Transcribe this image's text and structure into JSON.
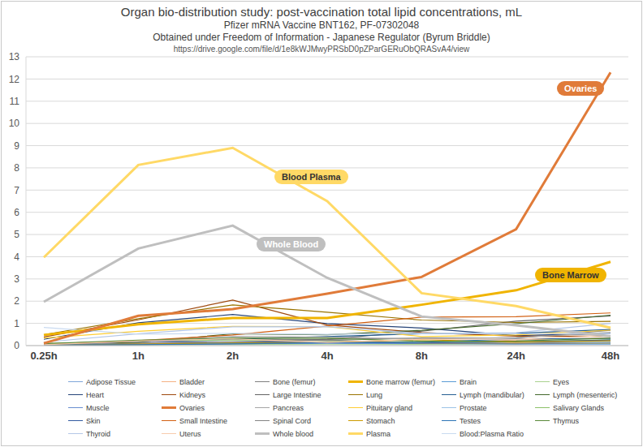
{
  "chart_data": {
    "type": "line",
    "title": "Organ bio-distribution study: post-vaccination total lipid concentrations, mL",
    "subtitle": [
      "Pfizer mRNA Vaccine BNT162, PF-07302048",
      "Obtained under Freedom of Information - Japanese Regulator (Byrum Briddle)",
      "https://drive.google.com/file/d/1e8kWJMwyPRSbD0pZParGERuObQRASvA4/view"
    ],
    "categories": [
      "0.25h",
      "1h",
      "2h",
      "4h",
      "8h",
      "24h",
      "48h"
    ],
    "ylim": [
      0,
      13
    ],
    "yticks": [
      0,
      1,
      2,
      3,
      4,
      5,
      6,
      7,
      8,
      9,
      10,
      11,
      12,
      13
    ],
    "grid": true,
    "series": [
      {
        "name": "Adipose Tissue",
        "color": "#7fa7d9",
        "values": [
          0.057,
          0.1,
          0.126,
          0.128,
          0.093,
          0.084,
          0.181
        ]
      },
      {
        "name": "Bladder",
        "color": "#f4b183",
        "values": [
          0.041,
          0.13,
          0.146,
          0.167,
          0.148,
          0.247,
          0.365
        ]
      },
      {
        "name": "Bone (femur)",
        "color": "#7f7f7f",
        "values": [
          0.091,
          0.195,
          0.266,
          0.276,
          0.34,
          0.342,
          0.687
        ]
      },
      {
        "name": "Bone marrow (femur)",
        "color": "#f0b400",
        "values": [
          0.479,
          0.96,
          1.24,
          1.24,
          1.84,
          2.49,
          3.77
        ]
      },
      {
        "name": "Brain",
        "color": "#5b9bd5",
        "values": [
          0.045,
          0.1,
          0.138,
          0.115,
          0.073,
          0.069,
          0.068
        ]
      },
      {
        "name": "Eyes",
        "color": "#a9d18e",
        "values": [
          0.01,
          0.035,
          0.052,
          0.067,
          0.059,
          0.091,
          0.112
        ]
      },
      {
        "name": "Heart",
        "color": "#264478",
        "values": [
          0.282,
          1.03,
          1.4,
          0.987,
          0.79,
          0.451,
          0.546
        ]
      },
      {
        "name": "Kidneys",
        "color": "#9e480e",
        "values": [
          0.391,
          1.16,
          2.05,
          0.924,
          0.59,
          0.426,
          0.425
        ]
      },
      {
        "name": "Large Intestine",
        "color": "#636363",
        "values": [
          0.013,
          0.048,
          0.093,
          0.287,
          0.649,
          1.1,
          1.34
        ]
      },
      {
        "name": "Lung",
        "color": "#997300",
        "values": [
          0.492,
          1.21,
          1.83,
          1.5,
          1.15,
          1.04,
          1.09
        ]
      },
      {
        "name": "Lymph (mandibular)",
        "color": "#255e91",
        "values": [
          0.064,
          0.189,
          0.29,
          0.408,
          0.534,
          0.554,
          0.727
        ]
      },
      {
        "name": "Lymph (mesenteric)",
        "color": "#43682b",
        "values": [
          0.05,
          0.146,
          0.53,
          0.489,
          0.689,
          0.985,
          1.37
        ]
      },
      {
        "name": "Muscle",
        "color": "#698ed0",
        "values": [
          0.021,
          0.061,
          0.084,
          0.103,
          0.096,
          0.095,
          0.192
        ]
      },
      {
        "name": "Ovaries",
        "color": "#e07b39",
        "values": [
          0.104,
          1.34,
          1.64,
          2.34,
          3.09,
          5.24,
          12.3
        ]
      },
      {
        "name": "Pancreas",
        "color": "#a5a5a5",
        "values": [
          0.081,
          0.207,
          0.414,
          0.38,
          0.294,
          0.358,
          0.599
        ]
      },
      {
        "name": "Pituitary gland",
        "color": "#ffcd33",
        "values": [
          0.339,
          0.645,
          0.868,
          0.854,
          0.405,
          0.478,
          0.694
        ]
      },
      {
        "name": "Prostate",
        "color": "#9dc3e6",
        "values": [
          0.061,
          0.091,
          0.128,
          0.157,
          0.15,
          0.183,
          0.17
        ]
      },
      {
        "name": "Salivary Glands",
        "color": "#8cc168",
        "values": [
          0.084,
          0.193,
          0.255,
          0.22,
          0.135,
          0.17,
          0.264
        ]
      },
      {
        "name": "Skin",
        "color": "#335aa1",
        "values": [
          0.013,
          0.208,
          0.159,
          0.145,
          0.119,
          0.157,
          0.253
        ]
      },
      {
        "name": "Small Intestine",
        "color": "#d26012",
        "values": [
          0.03,
          0.221,
          0.476,
          0.879,
          1.28,
          1.3,
          1.47
        ]
      },
      {
        "name": "Spinal Cord",
        "color": "#848484",
        "values": [
          0.043,
          0.097,
          0.169,
          0.25,
          0.106,
          0.085,
          0.112
        ]
      },
      {
        "name": "Stomach",
        "color": "#cc9a00",
        "values": [
          0.017,
          0.065,
          0.115,
          0.144,
          0.268,
          0.152,
          0.215
        ]
      },
      {
        "name": "Testes",
        "color": "#2e75b6",
        "values": [
          0.031,
          0.042,
          0.079,
          0.129,
          0.146,
          0.304,
          0.32
        ]
      },
      {
        "name": "Thymus",
        "color": "#5a8a3a",
        "values": [
          0.088,
          0.243,
          0.34,
          0.335,
          0.196,
          0.207,
          0.331
        ]
      },
      {
        "name": "Thyroid",
        "color": "#b4c7e7",
        "values": [
          0.155,
          0.536,
          0.842,
          0.851,
          0.544,
          0.578,
          1.0
        ]
      },
      {
        "name": "Uterus",
        "color": "#f8cbad",
        "values": [
          0.043,
          0.203,
          0.305,
          0.14,
          0.287,
          0.289,
          0.456
        ]
      },
      {
        "name": "Whole blood",
        "color": "#bfbfbf",
        "values": [
          1.97,
          4.37,
          5.4,
          3.05,
          1.31,
          0.909,
          0.42
        ]
      },
      {
        "name": "Plasma",
        "color": "#ffd966",
        "values": [
          3.97,
          8.13,
          8.9,
          6.5,
          2.36,
          1.78,
          0.805
        ]
      },
      {
        "name": "Blood:Plasma Ratio",
        "color": "#c9daf0",
        "values": [
          0.815,
          0.515,
          0.55,
          0.51,
          0.555,
          0.53,
          0.54
        ]
      }
    ],
    "annotations": [
      {
        "text": "Blood Plasma",
        "series": "Plasma"
      },
      {
        "text": "Whole Blood",
        "series": "Whole blood"
      },
      {
        "text": "Ovaries",
        "series": "Ovaries"
      },
      {
        "text": "Bone Marrow",
        "series": "Bone marrow (femur)"
      }
    ]
  }
}
